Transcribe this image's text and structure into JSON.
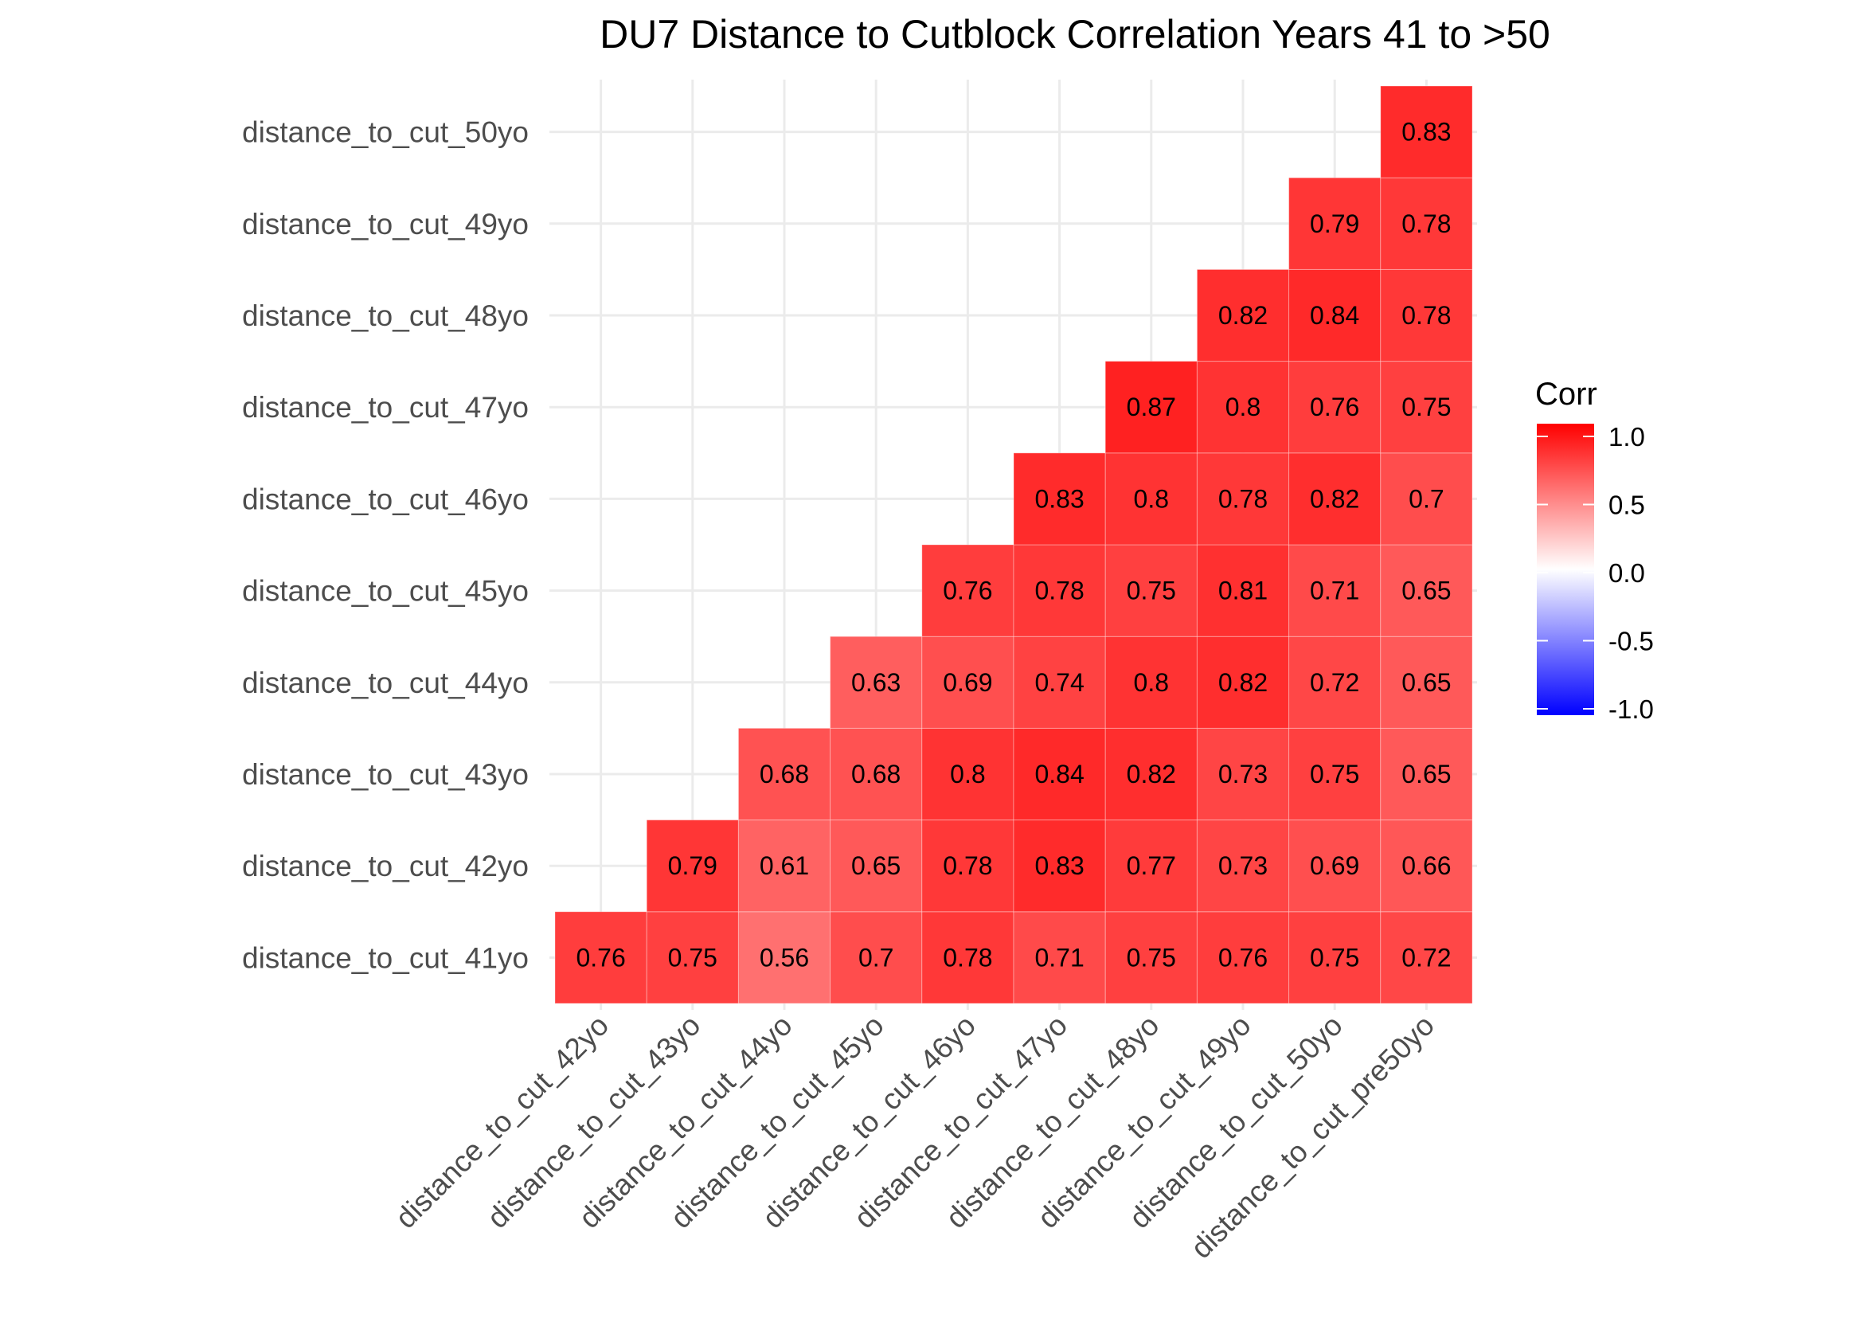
{
  "chart_data": {
    "type": "heatmap",
    "title": "DU7 Distance to Cutblock Correlation Years 41 to >50",
    "x_categories": [
      "distance_to_cut_42yo",
      "distance_to_cut_43yo",
      "distance_to_cut_44yo",
      "distance_to_cut_45yo",
      "distance_to_cut_46yo",
      "distance_to_cut_47yo",
      "distance_to_cut_48yo",
      "distance_to_cut_49yo",
      "distance_to_cut_50yo",
      "distance_to_cut_pre50yo"
    ],
    "y_categories": [
      "distance_to_cut_41yo",
      "distance_to_cut_42yo",
      "distance_to_cut_43yo",
      "distance_to_cut_44yo",
      "distance_to_cut_45yo",
      "distance_to_cut_46yo",
      "distance_to_cut_47yo",
      "distance_to_cut_48yo",
      "distance_to_cut_49yo",
      "distance_to_cut_50yo"
    ],
    "values": [
      [
        0.76,
        0.75,
        0.56,
        0.7,
        0.78,
        0.71,
        0.75,
        0.76,
        0.75,
        0.72
      ],
      [
        null,
        0.79,
        0.61,
        0.65,
        0.78,
        0.83,
        0.77,
        0.73,
        0.69,
        0.66
      ],
      [
        null,
        null,
        0.68,
        0.68,
        0.8,
        0.84,
        0.82,
        0.73,
        0.75,
        0.65
      ],
      [
        null,
        null,
        null,
        0.63,
        0.69,
        0.74,
        0.8,
        0.82,
        0.72,
        0.65
      ],
      [
        null,
        null,
        null,
        null,
        0.76,
        0.78,
        0.75,
        0.81,
        0.71,
        0.65
      ],
      [
        null,
        null,
        null,
        null,
        null,
        0.83,
        0.8,
        0.78,
        0.82,
        0.7
      ],
      [
        null,
        null,
        null,
        null,
        null,
        null,
        0.87,
        0.8,
        0.76,
        0.75
      ],
      [
        null,
        null,
        null,
        null,
        null,
        null,
        null,
        0.82,
        0.84,
        0.78
      ],
      [
        null,
        null,
        null,
        null,
        null,
        null,
        null,
        null,
        0.79,
        0.78
      ],
      [
        null,
        null,
        null,
        null,
        null,
        null,
        null,
        null,
        null,
        0.83
      ]
    ],
    "legend": {
      "title": "Corr",
      "ticks": [
        "1.0",
        "0.5",
        "0.0",
        "-0.5",
        "-1.0"
      ],
      "tick_values": [
        1,
        0.5,
        0,
        -0.5,
        -1
      ],
      "range": [
        -1,
        1
      ],
      "colors": {
        "low": "#0000ff",
        "mid": "#ffffff",
        "high": "#ff0000"
      },
      "placement": "right"
    },
    "grid": true
  }
}
